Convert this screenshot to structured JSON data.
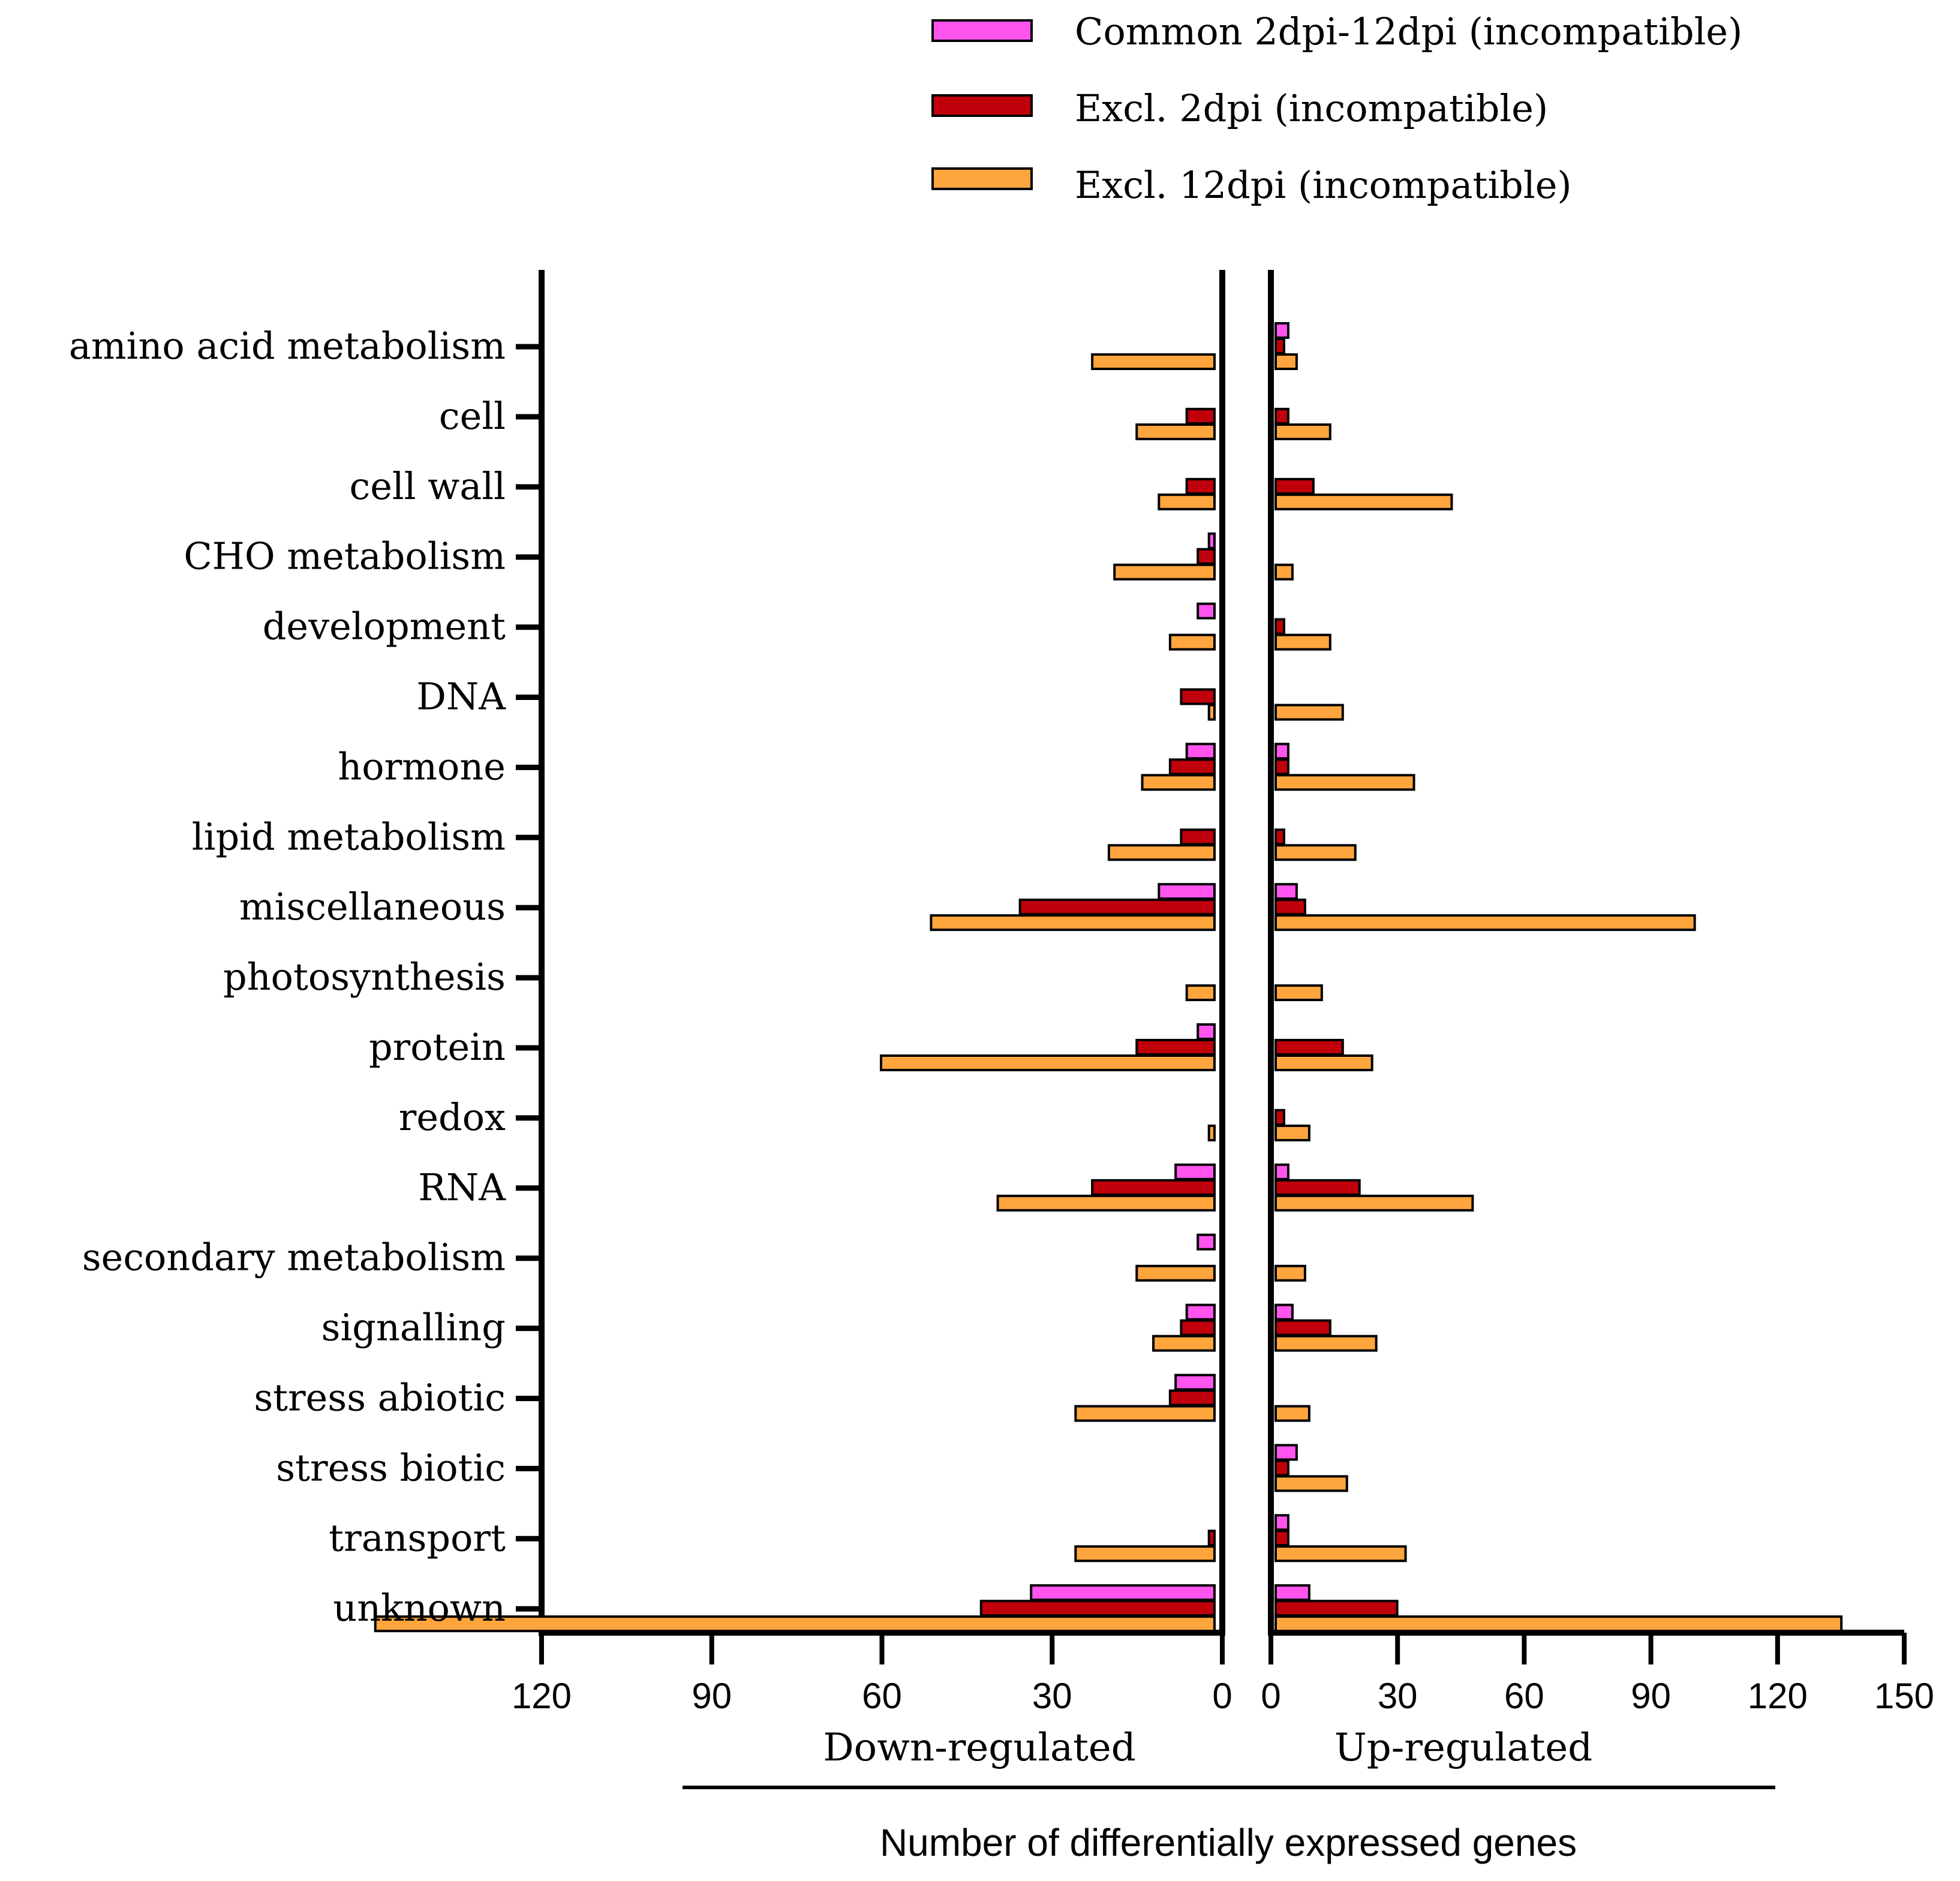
{
  "chart_data": {
    "type": "bar",
    "orientation": "horizontal-diverging",
    "categories": [
      "amino acid metabolism",
      "cell",
      "cell wall",
      "CHO metabolism",
      "development",
      "DNA",
      "hormone",
      "lipid metabolism",
      "miscellaneous",
      "photosynthesis",
      "protein",
      "redox",
      "RNA",
      "secondary metabolism",
      "signalling",
      "stress abiotic",
      "stress biotic",
      "transport",
      "unknown"
    ],
    "series": [
      {
        "name": "Common 2dpi-12dpi (incompatible)",
        "color": "#ff55ee",
        "down": [
          0,
          0,
          0,
          1,
          3,
          0,
          5,
          0,
          10,
          0,
          3,
          0,
          7,
          3,
          5,
          7,
          0,
          0,
          33
        ],
        "up": [
          3,
          0,
          0,
          0,
          0,
          0,
          3,
          0,
          5,
          0,
          0,
          0,
          3,
          0,
          4,
          0,
          5,
          3,
          8
        ]
      },
      {
        "name": "Excl. 2dpi (incompatible)",
        "color": "#c0000b",
        "down": [
          0,
          5,
          5,
          3,
          0,
          6,
          8,
          6,
          35,
          0,
          14,
          0,
          22,
          0,
          6,
          8,
          0,
          1,
          42
        ],
        "up": [
          2,
          3,
          9,
          0,
          2,
          0,
          3,
          2,
          7,
          0,
          16,
          2,
          20,
          0,
          13,
          0,
          3,
          3,
          29
        ]
      },
      {
        "name": "Excl. 12dpi (incompatible)",
        "color": "#ffa53d",
        "down": [
          22,
          14,
          10,
          18,
          8,
          1,
          13,
          19,
          51,
          5,
          60,
          1,
          39,
          14,
          11,
          25,
          0,
          25,
          151
        ],
        "up": [
          5,
          13,
          42,
          4,
          13,
          16,
          33,
          19,
          100,
          11,
          23,
          8,
          47,
          7,
          24,
          8,
          17,
          31,
          135
        ]
      }
    ],
    "x_left": {
      "label": "Down-regulated",
      "range": [
        120,
        0
      ],
      "ticks": [
        "120",
        "90",
        "60",
        "30",
        "0"
      ]
    },
    "x_right": {
      "label": "Up-regulated",
      "range": [
        0,
        150
      ],
      "ticks": [
        "0",
        "30",
        "60",
        "90",
        "120",
        "150"
      ]
    },
    "xlabel": "Number of differentially expressed genes",
    "legend_position": "top-right",
    "grid": false
  }
}
